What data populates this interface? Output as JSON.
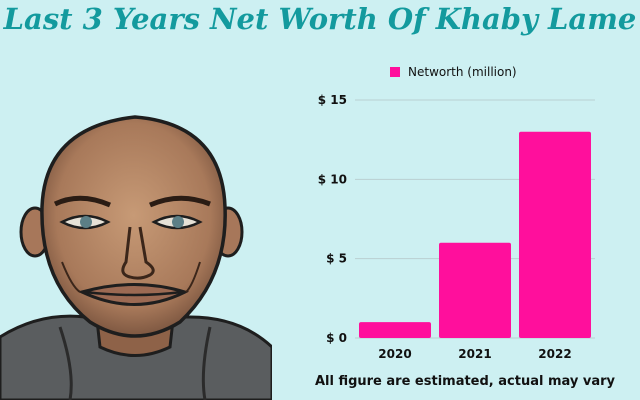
{
  "title": "Last 3 Years Net Worth Of Khaby Lame",
  "footnote": "All figure are estimated, actual may vary",
  "colors": {
    "background": "#cdf0f2",
    "title": "#139a9e",
    "bar": "#ff0f9c"
  },
  "chart_data": {
    "type": "bar",
    "title": "",
    "xlabel": "",
    "ylabel": "",
    "categories": [
      "2020",
      "2021",
      "2022"
    ],
    "series": [
      {
        "name": "Networth (million)",
        "values": [
          1,
          6,
          13
        ]
      }
    ],
    "ylim": [
      0,
      15
    ],
    "yticks": [
      0,
      5,
      10,
      15
    ],
    "ytick_labels": [
      "$ 0",
      "$ 5",
      "$ 10",
      "$ 15"
    ],
    "grid": true,
    "legend": "top"
  }
}
